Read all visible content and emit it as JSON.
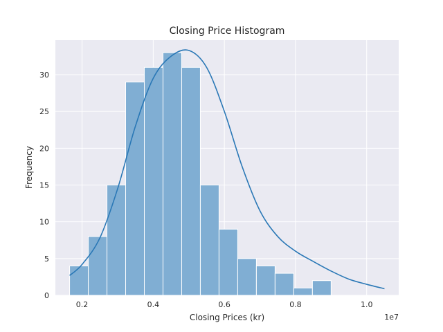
{
  "chart_data": {
    "type": "bar",
    "subtype": "histogram-with-kde",
    "title": "Closing Price Histogram",
    "xlabel": "Closing Prices (kr)",
    "ylabel": "Frequency",
    "x_offset_label": "1e7",
    "xlim": [
      0.125,
      1.09
    ],
    "ylim": [
      0,
      34.7
    ],
    "x_ticks": [
      0.2,
      0.4,
      0.6,
      0.8,
      1.0
    ],
    "x_tick_labels": [
      "0.2",
      "0.4",
      "0.6",
      "0.8",
      "1.0"
    ],
    "y_ticks": [
      0,
      5,
      10,
      15,
      20,
      25,
      30
    ],
    "y_tick_labels": [
      "0",
      "5",
      "10",
      "15",
      "20",
      "25",
      "30"
    ],
    "grid": true,
    "background": "#eaeaf2",
    "bar_color": "#80aed3",
    "line_color": "#2a78b6",
    "bins": [
      {
        "start": 0.165,
        "end": 0.2175,
        "count": 4
      },
      {
        "start": 0.2175,
        "end": 0.27,
        "count": 8
      },
      {
        "start": 0.27,
        "end": 0.3225,
        "count": 15
      },
      {
        "start": 0.3225,
        "end": 0.375,
        "count": 29
      },
      {
        "start": 0.375,
        "end": 0.4275,
        "count": 31
      },
      {
        "start": 0.4275,
        "end": 0.48,
        "count": 33
      },
      {
        "start": 0.48,
        "end": 0.5325,
        "count": 31
      },
      {
        "start": 0.5325,
        "end": 0.585,
        "count": 15
      },
      {
        "start": 0.585,
        "end": 0.6375,
        "count": 9
      },
      {
        "start": 0.6375,
        "end": 0.69,
        "count": 5
      },
      {
        "start": 0.69,
        "end": 0.7425,
        "count": 4
      },
      {
        "start": 0.7425,
        "end": 0.795,
        "count": 3
      },
      {
        "start": 0.795,
        "end": 0.8475,
        "count": 1
      },
      {
        "start": 0.8475,
        "end": 0.9,
        "count": 2
      }
    ],
    "kde": {
      "x": [
        0.165,
        0.2,
        0.25,
        0.3,
        0.35,
        0.4,
        0.45,
        0.5,
        0.55,
        0.6,
        0.65,
        0.7,
        0.75,
        0.8,
        0.85,
        0.9,
        0.95,
        1.0,
        1.05
      ],
      "y": [
        2.7,
        4.2,
        7.8,
        14.5,
        23,
        29.5,
        32.5,
        33.3,
        31,
        25,
        17.5,
        11.5,
        8,
        6,
        4.6,
        3.3,
        2.2,
        1.5,
        0.9
      ]
    }
  }
}
